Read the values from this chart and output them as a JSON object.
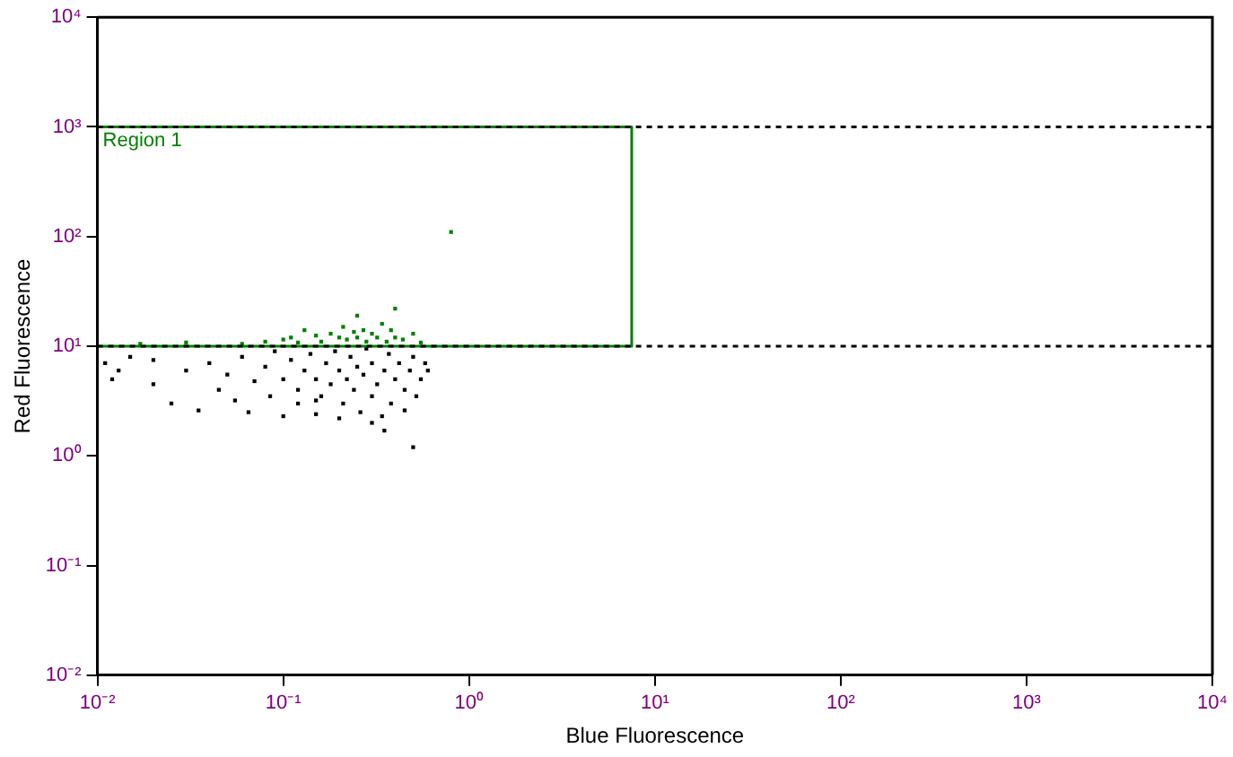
{
  "chart_data": {
    "type": "scatter",
    "xlabel": "Blue Fluorescence",
    "ylabel": "Red Fluorescence",
    "log": "xy",
    "grid": false,
    "legend": false,
    "marker": "square",
    "xlim": [
      0.01,
      10000
    ],
    "xticks": [
      {
        "value": 0.01,
        "label": "10⁻²"
      },
      {
        "value": 0.1,
        "label": "10⁻¹"
      },
      {
        "value": 1,
        "label": "10⁰"
      },
      {
        "value": 10,
        "label": "10¹"
      },
      {
        "value": 100,
        "label": "10²"
      },
      {
        "value": 1000,
        "label": "10³"
      },
      {
        "value": 10000,
        "label": "10⁴"
      }
    ],
    "ylim": [
      0.01,
      10000
    ],
    "yticks": [
      {
        "value": 0.01,
        "label": "10⁻²"
      },
      {
        "value": 0.1,
        "label": "10⁻¹"
      },
      {
        "value": 1,
        "label": "10⁰"
      },
      {
        "value": 10,
        "label": "10¹"
      },
      {
        "value": 100,
        "label": "10²"
      },
      {
        "value": 1000,
        "label": "10³"
      },
      {
        "value": 10000,
        "label": "10⁴"
      }
    ],
    "ref_lines": [
      {
        "axis": "y",
        "value": 10,
        "color": "#000000",
        "line_style": "dashed"
      },
      {
        "axis": "y",
        "value": 1000,
        "color": "#000000",
        "line_style": "dashed"
      }
    ],
    "series": [
      {
        "color": "#000000",
        "x": [
          0.011,
          0.012,
          0.013,
          0.015,
          0.02,
          0.025,
          0.03,
          0.035,
          0.04,
          0.045,
          0.05,
          0.055,
          0.06,
          0.065,
          0.07,
          0.08,
          0.085,
          0.09,
          0.1,
          0.1,
          0.11,
          0.12,
          0.12,
          0.13,
          0.14,
          0.15,
          0.15,
          0.16,
          0.17,
          0.18,
          0.19,
          0.2,
          0.2,
          0.21,
          0.22,
          0.23,
          0.24,
          0.25,
          0.26,
          0.27,
          0.28,
          0.3,
          0.3,
          0.32,
          0.34,
          0.35,
          0.37,
          0.38,
          0.4,
          0.42,
          0.45,
          0.45,
          0.48,
          0.5,
          0.52,
          0.55,
          0.58,
          0.6,
          0.5,
          0.35,
          0.3,
          0.15,
          0.02
        ],
        "values": [
          7,
          5,
          6,
          8,
          4.5,
          3,
          6,
          2.6,
          7,
          4,
          5.5,
          3.2,
          8,
          2.5,
          4.8,
          6.5,
          3.5,
          9,
          2.3,
          5,
          7.5,
          3,
          4,
          6,
          8.5,
          2.4,
          5,
          3.5,
          7,
          4.5,
          9,
          2.2,
          6,
          3,
          5,
          8,
          4,
          6.5,
          2.5,
          5.5,
          9.5,
          3.5,
          7,
          4.5,
          2.3,
          6,
          8.5,
          3,
          5,
          7,
          2.6,
          4,
          6,
          8,
          3.5,
          5,
          7,
          6,
          1.2,
          1.7,
          2,
          3.2,
          7.5
        ]
      },
      {
        "color": "#008000",
        "x": [
          0.017,
          0.03,
          0.06,
          0.08,
          0.1,
          0.11,
          0.12,
          0.13,
          0.15,
          0.16,
          0.18,
          0.2,
          0.21,
          0.22,
          0.24,
          0.25,
          0.27,
          0.28,
          0.3,
          0.32,
          0.34,
          0.36,
          0.38,
          0.4,
          0.44,
          0.5,
          0.55,
          0.4,
          0.25,
          0.8
        ],
        "values": [
          10.5,
          10.8,
          10.5,
          11,
          11.5,
          12,
          10.8,
          14,
          12.5,
          11,
          13,
          12,
          15,
          11.5,
          13.5,
          12,
          14,
          11,
          13,
          12,
          16,
          11,
          14,
          12,
          11.5,
          13,
          10.8,
          22,
          19,
          110
        ]
      },
      {
        "type": "line",
        "name": "Region 1",
        "color": "#008000",
        "marker": "none",
        "x": [
          0.01,
          7.5,
          7.5,
          0.01
        ],
        "values": [
          1000,
          1000,
          10,
          10
        ]
      }
    ]
  }
}
